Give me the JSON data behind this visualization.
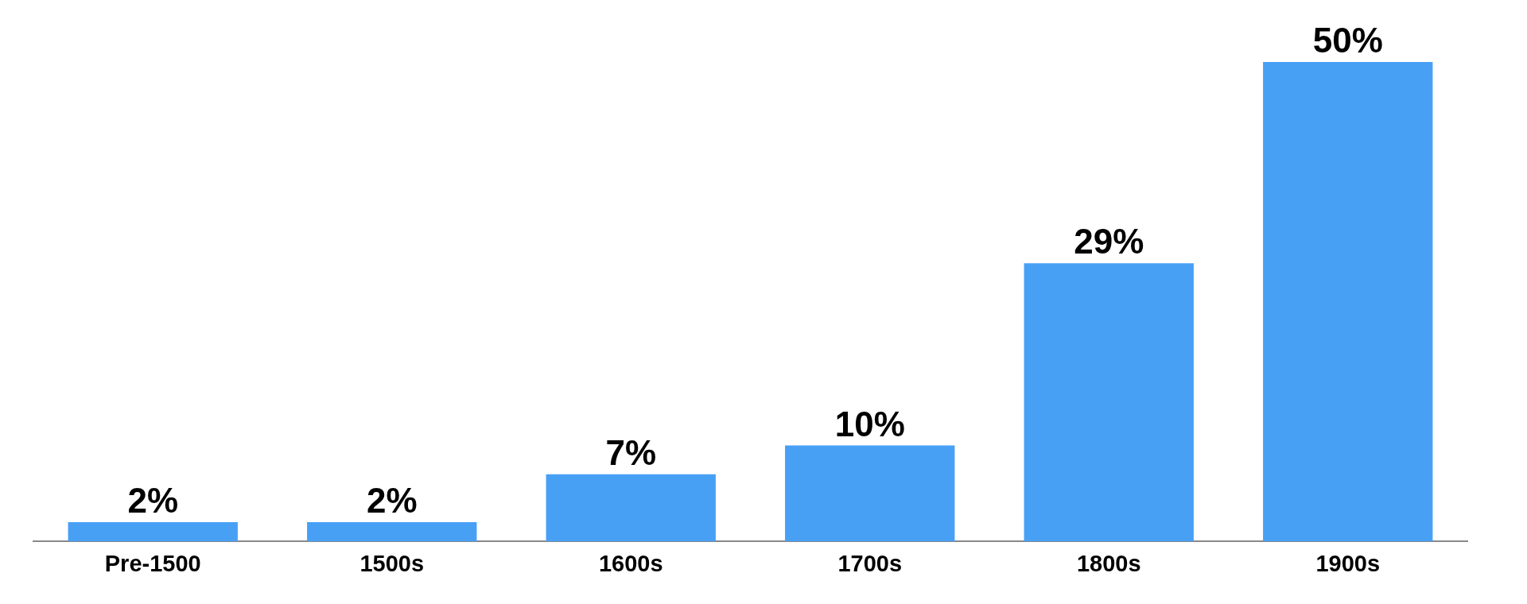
{
  "chart_data": {
    "type": "bar",
    "categories": [
      "Pre-1500",
      "1500s",
      "1600s",
      "1700s",
      "1800s",
      "1900s"
    ],
    "values": [
      2,
      2,
      7,
      10,
      29,
      50
    ],
    "color": "#48a0f5",
    "value_labels": [
      "2%",
      "2%",
      "7%",
      "10%",
      "29%",
      "50%"
    ]
  }
}
